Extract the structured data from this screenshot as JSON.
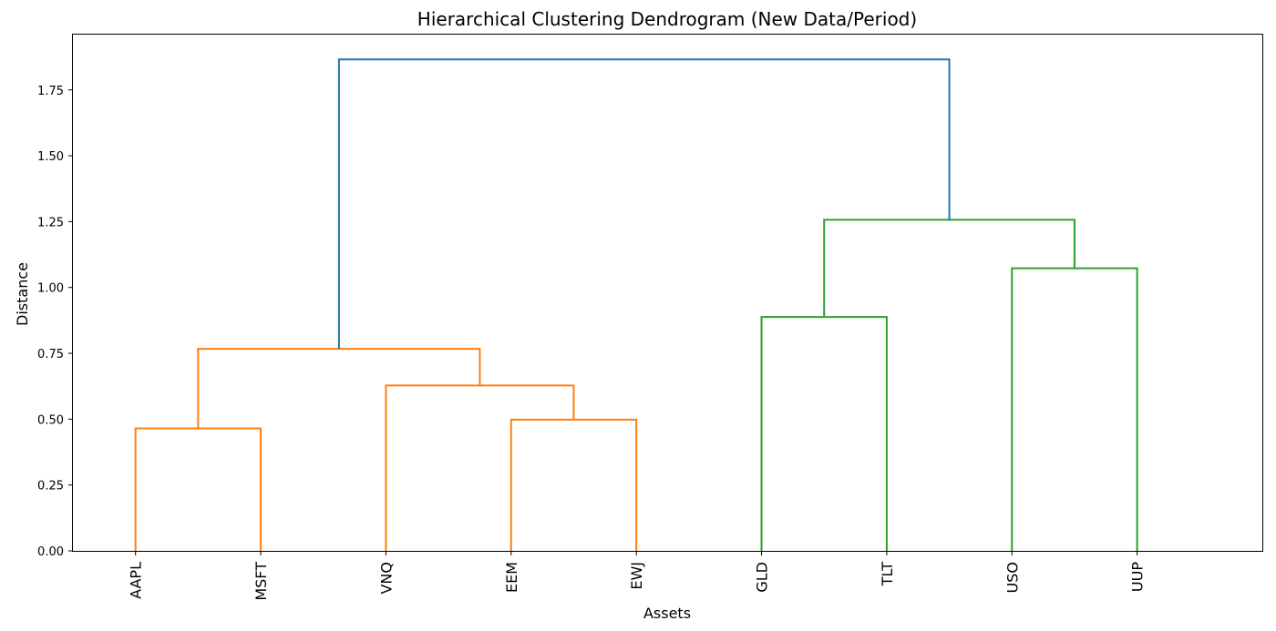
{
  "chart_data": {
    "type": "dendrogram",
    "title": "Hierarchical Clustering Dendrogram (New Data/Period)",
    "xlabel": "Assets",
    "ylabel": "Distance",
    "ylim": [
      0,
      1.96
    ],
    "yticks": [
      0.0,
      0.25,
      0.5,
      0.75,
      1.0,
      1.25,
      1.5,
      1.75
    ],
    "ytick_labels": [
      "0.00",
      "0.25",
      "0.50",
      "0.75",
      "1.00",
      "1.25",
      "1.50",
      "1.75"
    ],
    "leaves": [
      "AAPL",
      "MSFT",
      "VNQ",
      "EEM",
      "EWJ",
      "GLD",
      "TLT",
      "USO",
      "UUP"
    ],
    "colors": {
      "cluster_1": "#ff7f0e",
      "cluster_2": "#2ca02c",
      "root": "#1f77b4"
    },
    "merges": [
      {
        "left": "AAPL",
        "right": "MSFT",
        "height": 0.465,
        "color": "cluster_1"
      },
      {
        "left": "EEM",
        "right": "EWJ",
        "height": 0.498,
        "color": "cluster_1"
      },
      {
        "left": "VNQ",
        "right": "EEM+EWJ",
        "height": 0.628,
        "color": "cluster_1"
      },
      {
        "left": "AAPL+MSFT",
        "right": "VNQ+EEM+EWJ",
        "height": 0.767,
        "color": "cluster_1"
      },
      {
        "left": "GLD",
        "right": "TLT",
        "height": 0.888,
        "color": "cluster_2"
      },
      {
        "left": "USO",
        "right": "UUP",
        "height": 1.073,
        "color": "cluster_2"
      },
      {
        "left": "GLD+TLT",
        "right": "USO+UUP",
        "height": 1.257,
        "color": "cluster_2"
      },
      {
        "left": "AAPL+MSFT+VNQ+EEM+EWJ",
        "right": "GLD+TLT+USO+UUP",
        "height": 1.866,
        "color": "root"
      }
    ]
  }
}
